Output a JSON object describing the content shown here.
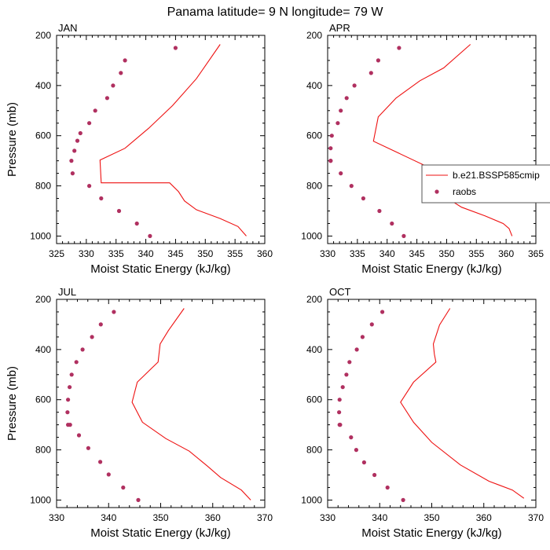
{
  "title": "Panama  latitude= 9 N longitude= 79 W",
  "colors": {
    "model": "#ee1111",
    "obs": "#b03060",
    "axes": "#000000",
    "background": "#ffffff"
  },
  "legend": {
    "placement": "right-middle",
    "items": [
      "b.e21.BSSP585cmip",
      "raobs"
    ]
  },
  "chart_data": [
    {
      "type": "line",
      "panel": "JAN",
      "xlabel": "Moist Static Energy (kJ/kg)",
      "ylabel": "Pressure (mb)",
      "xlim": [
        325,
        360
      ],
      "ylim": [
        200,
        1030
      ],
      "y_inverted": true,
      "grid": false,
      "xticks": [
        325,
        330,
        335,
        340,
        345,
        350,
        355,
        360
      ],
      "yticks": [
        200,
        400,
        600,
        800,
        1000
      ],
      "series": [
        {
          "name": "b.e21.BSSP585cmip",
          "style": "line",
          "x": [
            352.5,
            348.5,
            344.5,
            340.5,
            336.5,
            332.3,
            332.5,
            344.0,
            345.5,
            346.5,
            348.5,
            352.5,
            355.5,
            356.9
          ],
          "y": [
            236,
            373,
            480,
            570,
            650,
            697,
            788,
            788,
            823,
            860,
            895,
            930,
            962,
            1000
          ]
        },
        {
          "name": "raobs",
          "style": "markers",
          "x": [
            345,
            336.5,
            335.8,
            334.5,
            333.5,
            331.5,
            330.5,
            329,
            328.5,
            328,
            327.5,
            327.7,
            330.5,
            332.5,
            335.5,
            338.5,
            340.7
          ],
          "y": [
            250,
            300,
            350,
            400,
            450,
            500,
            550,
            590,
            620,
            660,
            700,
            750,
            800,
            850,
            900,
            950,
            1000
          ]
        }
      ]
    },
    {
      "type": "line",
      "panel": "APR",
      "xlabel": "Moist Static Energy (kJ/kg)",
      "ylabel": "",
      "xlim": [
        330,
        365
      ],
      "ylim": [
        200,
        1030
      ],
      "y_inverted": true,
      "grid": false,
      "xticks": [
        330,
        335,
        340,
        345,
        350,
        355,
        360,
        365
      ],
      "yticks": [
        200,
        400,
        600,
        800,
        1000
      ],
      "series": [
        {
          "name": "b.e21.BSSP585cmip",
          "style": "line",
          "x": [
            354.0,
            349.5,
            345.5,
            341.5,
            338.5,
            337.7,
            350.0,
            350.5,
            350.7,
            352.5,
            356.5,
            359.5,
            360.5,
            361.0
          ],
          "y": [
            236,
            330,
            381,
            450,
            525,
            622,
            760,
            800,
            858,
            885,
            920,
            950,
            970,
            1000
          ]
        },
        {
          "name": "raobs",
          "style": "markers",
          "x": [
            342,
            338.5,
            337.3,
            334.5,
            333.2,
            332.2,
            331.7,
            330.7,
            330.5,
            330.5,
            330.5,
            332.2,
            334,
            336,
            338.7,
            340.8,
            342.8
          ],
          "y": [
            250,
            300,
            350,
            400,
            450,
            500,
            550,
            600,
            650,
            700,
            700,
            750,
            800,
            850,
            900,
            950,
            1000
          ]
        }
      ]
    },
    {
      "type": "line",
      "panel": "JUL",
      "xlabel": "Moist Static Energy (kJ/kg)",
      "ylabel": "Pressure (mb)",
      "xlim": [
        330,
        370
      ],
      "ylim": [
        200,
        1030
      ],
      "y_inverted": true,
      "grid": false,
      "xticks": [
        330,
        340,
        350,
        360,
        370
      ],
      "yticks": [
        200,
        400,
        600,
        800,
        1000
      ],
      "series": [
        {
          "name": "b.e21.BSSP585cmip",
          "style": "line",
          "x": [
            354.5,
            351.5,
            349.9,
            349.5,
            345.5,
            344.5,
            346.5,
            351.0,
            355.5,
            359.0,
            361.5,
            365.5,
            367.3
          ],
          "y": [
            236,
            324,
            378,
            450,
            530,
            610,
            690,
            755,
            805,
            865,
            910,
            960,
            1000
          ]
        },
        {
          "name": "raobs",
          "style": "markers",
          "x": [
            341,
            338.5,
            336.8,
            335,
            333.8,
            332.9,
            332.5,
            332.2,
            332.1,
            332.2,
            332.6,
            334.3,
            336.1,
            338.4,
            340,
            342.8,
            345.7
          ],
          "y": [
            250,
            300,
            350,
            400,
            450,
            500,
            550,
            600,
            650,
            700,
            700,
            742,
            793,
            848,
            898,
            950,
            1000
          ]
        }
      ]
    },
    {
      "type": "line",
      "panel": "OCT",
      "xlabel": "Moist Static Energy (kJ/kg)",
      "ylabel": "",
      "xlim": [
        330,
        370
      ],
      "ylim": [
        200,
        1030
      ],
      "y_inverted": true,
      "grid": false,
      "xticks": [
        330,
        340,
        350,
        360,
        370
      ],
      "yticks": [
        200,
        400,
        600,
        800,
        1000
      ],
      "series": [
        {
          "name": "b.e21.BSSP585cmip",
          "style": "line",
          "x": [
            353.5,
            351.5,
            350.3,
            350.5,
            350.8,
            346.5,
            344.0,
            346.5,
            350.0,
            355.5,
            361.0,
            365.5,
            367.7
          ],
          "y": [
            236,
            302,
            378,
            418,
            450,
            530,
            610,
            690,
            770,
            860,
            925,
            960,
            993
          ]
        },
        {
          "name": "raobs",
          "style": "markers",
          "x": [
            340.5,
            338.5,
            336.7,
            335.6,
            334.2,
            333.6,
            332.9,
            332.3,
            332.2,
            332.3,
            332.4,
            334.5,
            335.5,
            337,
            339,
            341.5,
            344.5
          ],
          "y": [
            250,
            300,
            350,
            400,
            450,
            500,
            550,
            600,
            650,
            700,
            700,
            750,
            800,
            850,
            900,
            950,
            1000
          ]
        }
      ]
    }
  ]
}
